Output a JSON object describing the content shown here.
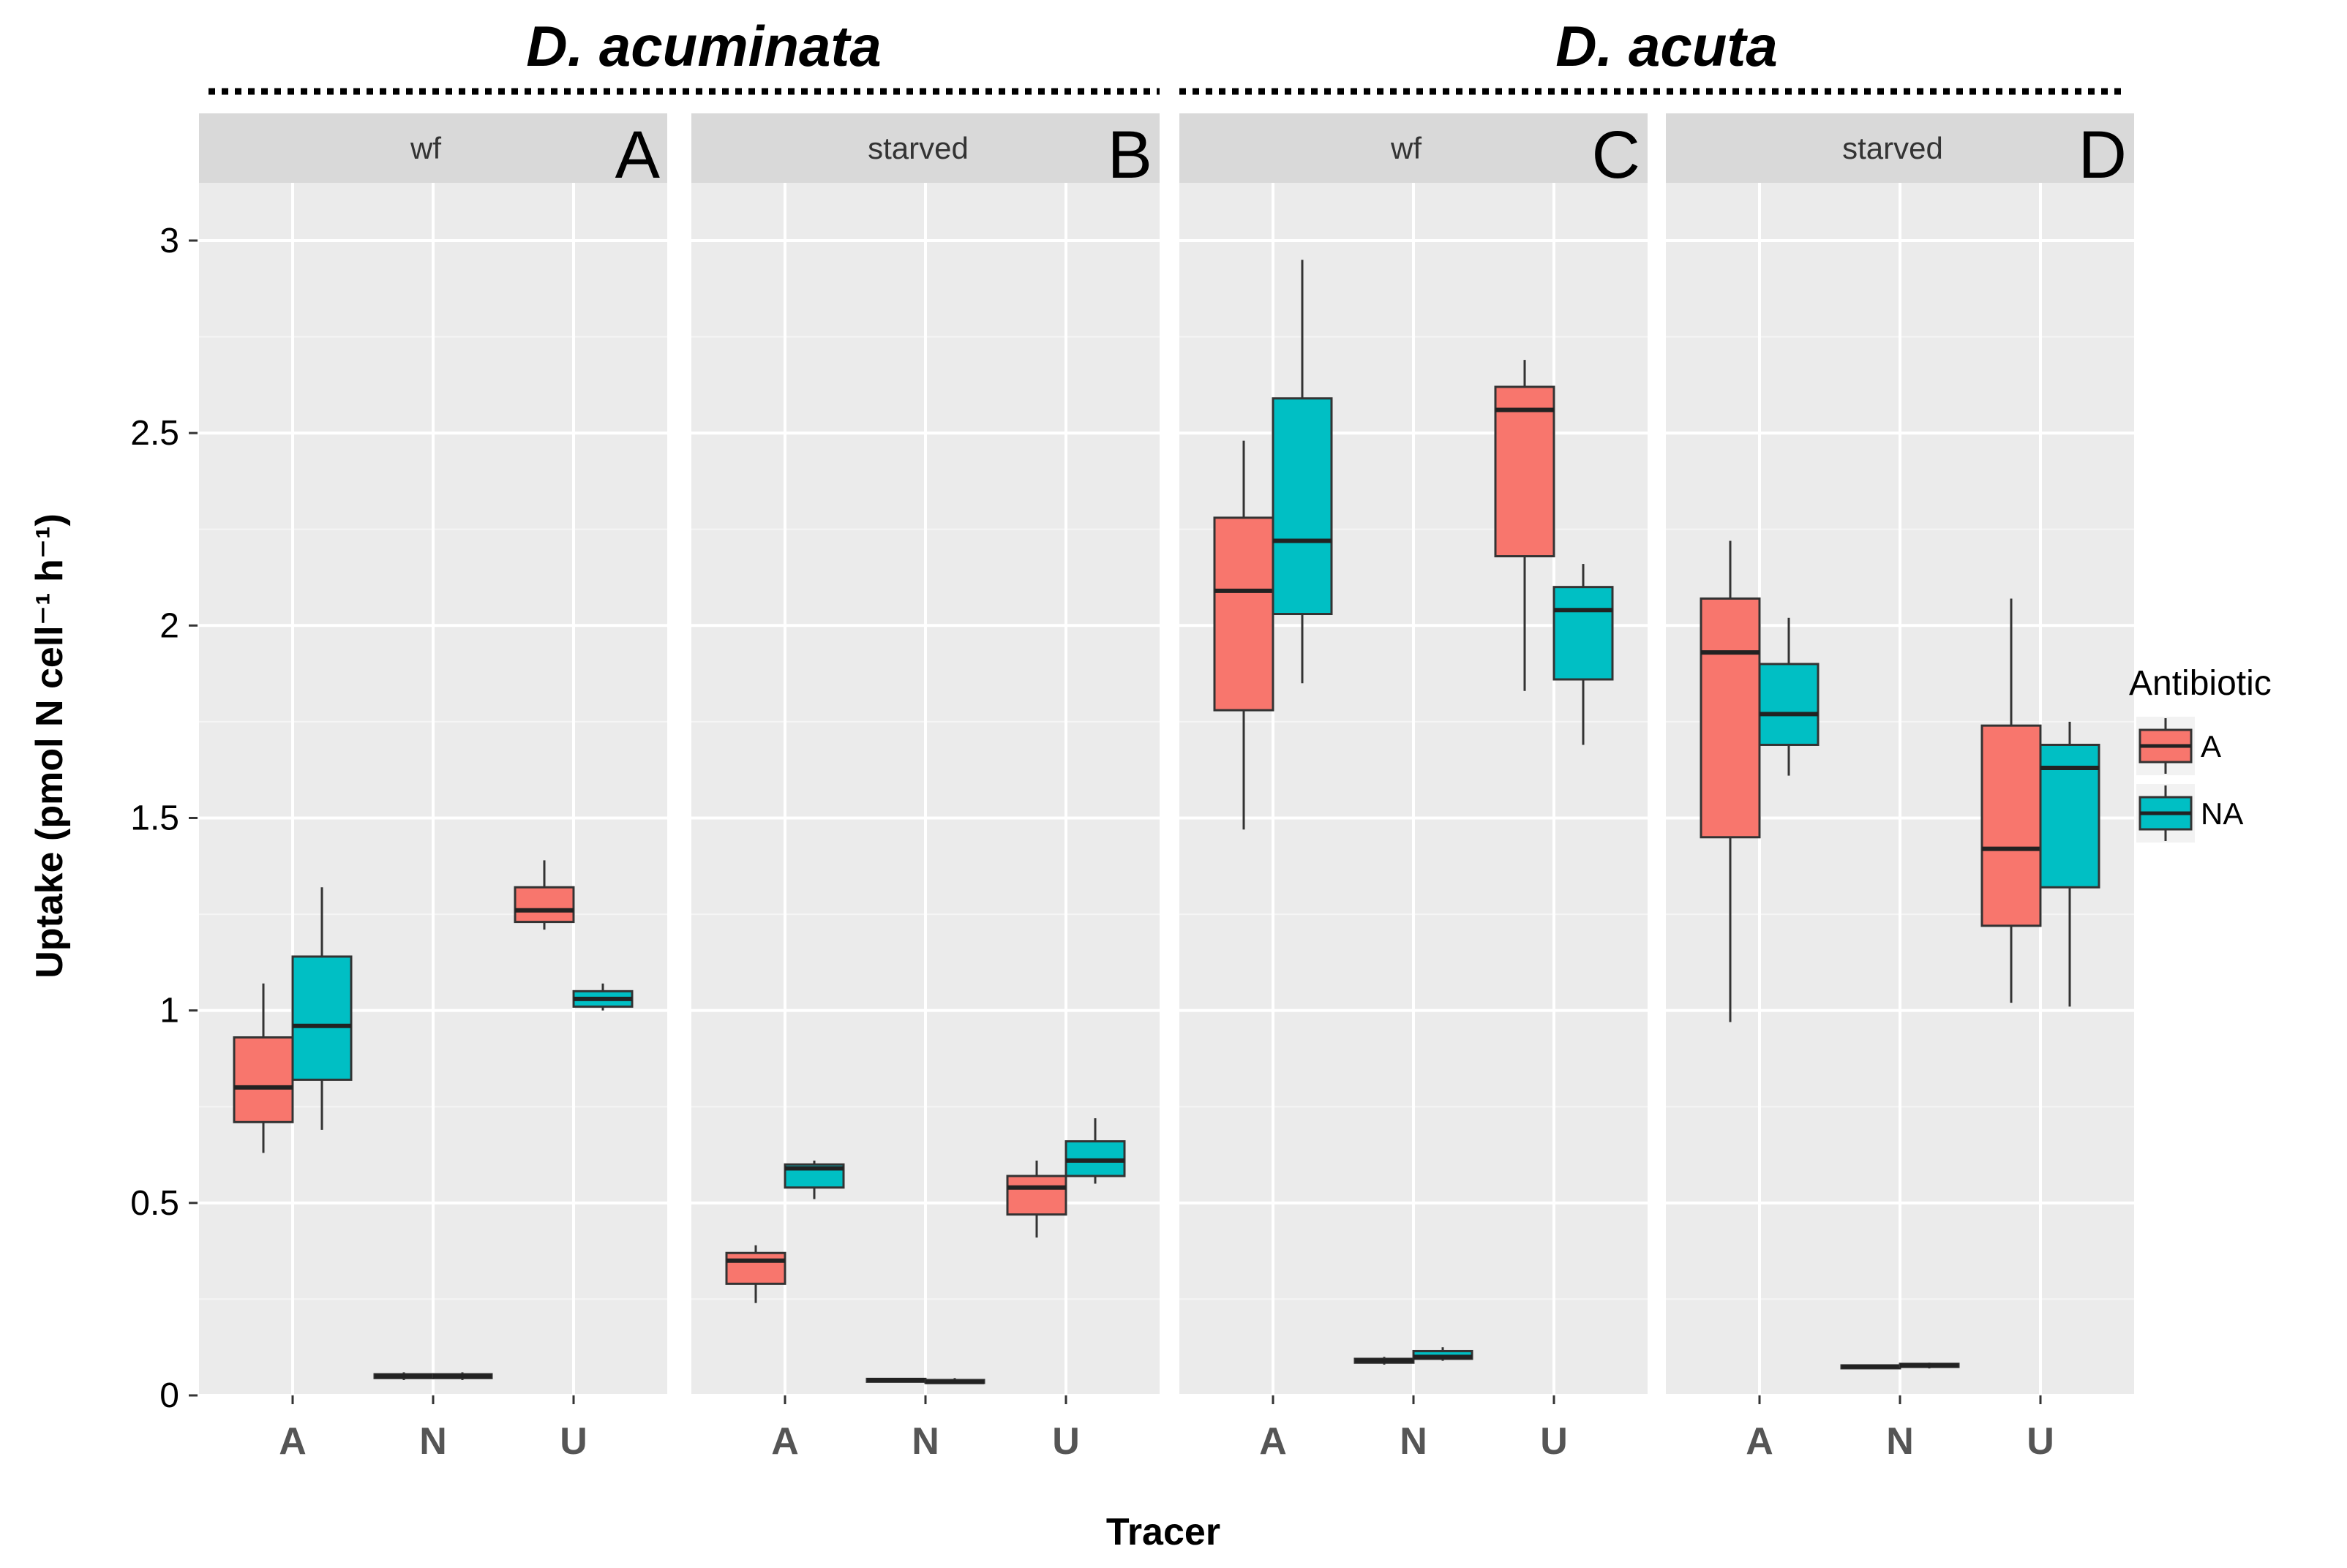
{
  "chart_data": {
    "type": "boxplot",
    "xlabel": "Tracer",
    "ylabel": "Uptake (pmol N cell⁻¹ h⁻¹)",
    "ylim": [
      0,
      3.15
    ],
    "yticks": [
      0,
      0.5,
      1,
      1.5,
      2,
      2.5,
      3
    ],
    "ytick_labels": [
      "0",
      "0.5",
      "1",
      "1.5",
      "2",
      "2.5",
      "3"
    ],
    "categories": [
      "A",
      "N",
      "U"
    ],
    "grid": true,
    "species_groups": [
      {
        "label": "D. acuminata",
        "panels": [
          0,
          1
        ]
      },
      {
        "label": "D. acuta",
        "panels": [
          2,
          3
        ]
      }
    ],
    "legend": {
      "title": "Antibiotic",
      "position": "right",
      "entries": [
        {
          "name": "A",
          "color": "#F8766D"
        },
        {
          "name": "NA",
          "color": "#00BFC4"
        }
      ]
    },
    "panels": [
      {
        "strip": "wf",
        "letter": "A",
        "boxes": [
          {
            "tracer": "A",
            "group": "A",
            "min": 0.63,
            "q1": 0.71,
            "median": 0.8,
            "q3": 0.93,
            "max": 1.07
          },
          {
            "tracer": "A",
            "group": "NA",
            "min": 0.69,
            "q1": 0.82,
            "median": 0.96,
            "q3": 1.14,
            "max": 1.32
          },
          {
            "tracer": "N",
            "group": "A",
            "min": 0.04,
            "q1": 0.045,
            "median": 0.05,
            "q3": 0.055,
            "max": 0.06
          },
          {
            "tracer": "N",
            "group": "NA",
            "min": 0.04,
            "q1": 0.045,
            "median": 0.05,
            "q3": 0.055,
            "max": 0.06
          },
          {
            "tracer": "U",
            "group": "A",
            "min": 1.21,
            "q1": 1.23,
            "median": 1.26,
            "q3": 1.32,
            "max": 1.39
          },
          {
            "tracer": "U",
            "group": "NA",
            "min": 1.0,
            "q1": 1.01,
            "median": 1.03,
            "q3": 1.05,
            "max": 1.07
          }
        ]
      },
      {
        "strip": "starved",
        "letter": "B",
        "boxes": [
          {
            "tracer": "A",
            "group": "A",
            "min": 0.24,
            "q1": 0.29,
            "median": 0.35,
            "q3": 0.37,
            "max": 0.39
          },
          {
            "tracer": "A",
            "group": "NA",
            "min": 0.51,
            "q1": 0.54,
            "median": 0.59,
            "q3": 0.6,
            "max": 0.61
          },
          {
            "tracer": "N",
            "group": "A",
            "min": 0.035,
            "q1": 0.038,
            "median": 0.04,
            "q3": 0.043,
            "max": 0.045
          },
          {
            "tracer": "N",
            "group": "NA",
            "min": 0.03,
            "q1": 0.033,
            "median": 0.035,
            "q3": 0.04,
            "max": 0.045
          },
          {
            "tracer": "U",
            "group": "A",
            "min": 0.41,
            "q1": 0.47,
            "median": 0.54,
            "q3": 0.57,
            "max": 0.61
          },
          {
            "tracer": "U",
            "group": "NA",
            "min": 0.55,
            "q1": 0.57,
            "median": 0.61,
            "q3": 0.66,
            "max": 0.72
          }
        ]
      },
      {
        "strip": "wf",
        "letter": "C",
        "boxes": [
          {
            "tracer": "A",
            "group": "A",
            "min": 1.47,
            "q1": 1.78,
            "median": 2.09,
            "q3": 2.28,
            "max": 2.48
          },
          {
            "tracer": "A",
            "group": "NA",
            "min": 1.85,
            "q1": 2.03,
            "median": 2.22,
            "q3": 2.59,
            "max": 2.95
          },
          {
            "tracer": "N",
            "group": "A",
            "min": 0.08,
            "q1": 0.085,
            "median": 0.09,
            "q3": 0.095,
            "max": 0.1
          },
          {
            "tracer": "N",
            "group": "NA",
            "min": 0.09,
            "q1": 0.095,
            "median": 0.1,
            "q3": 0.115,
            "max": 0.125
          },
          {
            "tracer": "U",
            "group": "A",
            "min": 1.83,
            "q1": 2.18,
            "median": 2.56,
            "q3": 2.62,
            "max": 2.69
          },
          {
            "tracer": "U",
            "group": "NA",
            "min": 1.69,
            "q1": 1.86,
            "median": 2.04,
            "q3": 2.1,
            "max": 2.16
          }
        ]
      },
      {
        "strip": "starved",
        "letter": "D",
        "boxes": [
          {
            "tracer": "A",
            "group": "A",
            "min": 0.97,
            "q1": 1.45,
            "median": 1.93,
            "q3": 2.07,
            "max": 2.22
          },
          {
            "tracer": "A",
            "group": "NA",
            "min": 1.61,
            "q1": 1.69,
            "median": 1.77,
            "q3": 1.9,
            "max": 2.02
          },
          {
            "tracer": "N",
            "group": "A",
            "min": 0.07,
            "q1": 0.073,
            "median": 0.075,
            "q3": 0.078,
            "max": 0.08
          },
          {
            "tracer": "N",
            "group": "NA",
            "min": 0.07,
            "q1": 0.074,
            "median": 0.078,
            "q3": 0.082,
            "max": 0.085
          },
          {
            "tracer": "U",
            "group": "A",
            "min": 1.02,
            "q1": 1.22,
            "median": 1.42,
            "q3": 1.74,
            "max": 2.07
          },
          {
            "tracer": "U",
            "group": "NA",
            "min": 1.01,
            "q1": 1.32,
            "median": 1.63,
            "q3": 1.69,
            "max": 1.75
          }
        ]
      }
    ]
  }
}
